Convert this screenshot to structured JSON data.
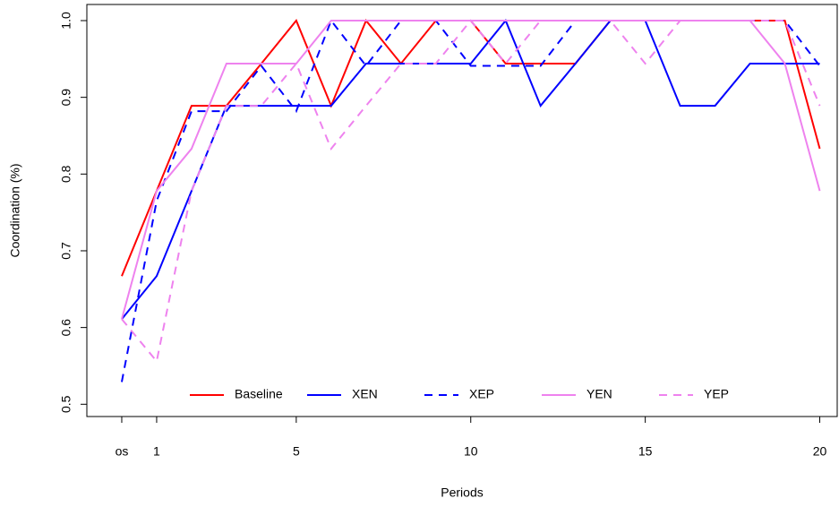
{
  "chart_data": {
    "type": "line",
    "xlabel": "Periods",
    "ylabel": "Coordination (%)",
    "x": [
      0,
      1,
      2,
      3,
      4,
      5,
      6,
      7,
      8,
      9,
      10,
      11,
      12,
      13,
      14,
      15,
      16,
      17,
      18,
      19,
      20
    ],
    "series": [
      {
        "name": "Baseline",
        "color": "#ff0000",
        "linestyle": "solid",
        "values": [
          0.667,
          0.778,
          0.889,
          0.889,
          0.944,
          1.0,
          0.889,
          1.0,
          0.944,
          1.0,
          1.0,
          0.944,
          0.944,
          0.944,
          1.0,
          1.0,
          1.0,
          1.0,
          1.0,
          1.0,
          0.833
        ]
      },
      {
        "name": "XEN",
        "color": "#0000ff",
        "linestyle": "solid",
        "values": [
          0.611,
          0.667,
          0.778,
          0.889,
          0.889,
          0.889,
          0.889,
          0.944,
          0.944,
          0.944,
          0.944,
          1.0,
          0.889,
          0.944,
          1.0,
          1.0,
          0.889,
          0.889,
          0.944,
          0.944,
          0.944
        ]
      },
      {
        "name": "XEP",
        "color": "#0000ff",
        "linestyle": "dashed",
        "values": [
          0.529,
          0.765,
          0.882,
          0.882,
          0.941,
          0.882,
          1.0,
          0.941,
          1.0,
          1.0,
          0.941,
          0.941,
          0.941,
          1.0,
          1.0,
          1.0,
          1.0,
          1.0,
          1.0,
          1.0,
          0.941
        ]
      },
      {
        "name": "YEN",
        "color": "#ee82ee",
        "linestyle": "solid",
        "values": [
          0.611,
          0.778,
          0.833,
          0.944,
          0.944,
          0.944,
          1.0,
          1.0,
          1.0,
          1.0,
          1.0,
          1.0,
          1.0,
          1.0,
          1.0,
          1.0,
          1.0,
          1.0,
          1.0,
          0.944,
          0.778
        ]
      },
      {
        "name": "YEP",
        "color": "#ee82ee",
        "linestyle": "dashed",
        "values": [
          0.611,
          0.556,
          0.778,
          0.889,
          0.889,
          0.944,
          0.833,
          0.889,
          0.944,
          0.944,
          1.0,
          0.944,
          1.0,
          1.0,
          1.0,
          0.944,
          1.0,
          1.0,
          1.0,
          1.0,
          0.889
        ]
      }
    ],
    "xlim": [
      -1,
      20.5
    ],
    "ylim": [
      0.484,
      1.021
    ],
    "xticks": [
      {
        "value": 0,
        "label": "os"
      },
      1,
      5,
      10,
      15,
      20
    ],
    "yticks": [
      0.5,
      0.6,
      0.7,
      0.8,
      0.9,
      {
        "value": 1.0,
        "label": "1.0"
      }
    ],
    "legend": "bottom",
    "grid": false
  }
}
